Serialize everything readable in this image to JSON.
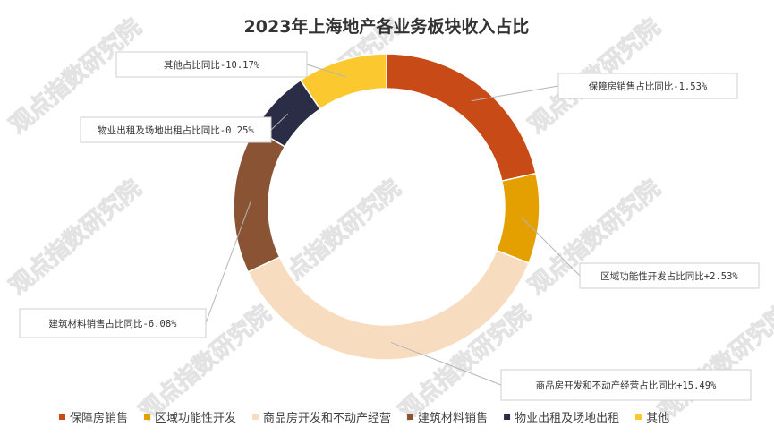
{
  "chart_data": {
    "type": "pie",
    "title": "2023年上海地产各业务板块收入占比",
    "watermark": "观点指数研究院",
    "colors": [
      "#c84a16",
      "#e4a000",
      "#f7dcc0",
      "#8a5434",
      "#2b2d46",
      "#fcc830"
    ],
    "slices": [
      {
        "name": "保障房销售",
        "value": 21.5,
        "callout": "保障房销售占比同比-1.53%"
      },
      {
        "name": "区域功能性开发",
        "value": 9.5,
        "callout": "区域功能性开发占比同比+2.53%"
      },
      {
        "name": "商品房开发和不动产经营",
        "value": 37.0,
        "callout": "商品房开发和不动产经营占比同比+15.49%"
      },
      {
        "name": "建筑材料销售",
        "value": 15.5,
        "callout": "建筑材料销售占比同比-6.08%"
      },
      {
        "name": "物业出租及场地出租",
        "value": 7.0,
        "callout": "物业出租及场地出租占比同比-0.25%"
      },
      {
        "name": "其他",
        "value": 9.5,
        "callout": "其他占比同比-10.17%"
      }
    ],
    "legend_position": "bottom"
  }
}
